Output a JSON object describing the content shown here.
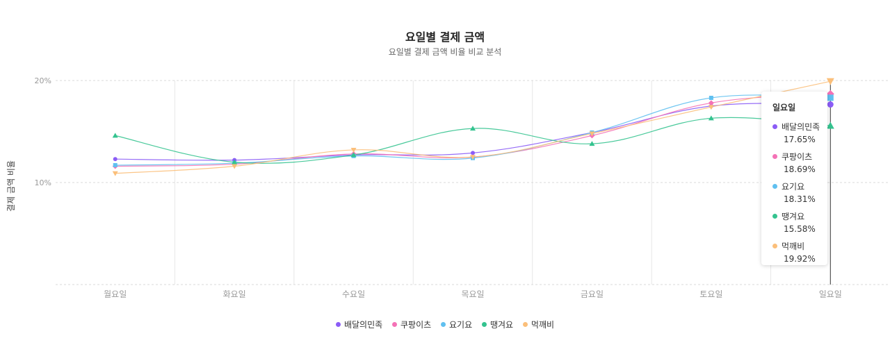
{
  "chart_data": {
    "type": "line",
    "title": "요일별 결제 금액",
    "subtitle": "요일별 결제 금액 비율 비교 분석",
    "ylabel": "결제 금액 비율",
    "xlabel": "",
    "ylim": [
      0,
      20
    ],
    "yticks": [
      "20%",
      "10%"
    ],
    "categories": [
      "월요일",
      "화요일",
      "수요일",
      "목요일",
      "금요일",
      "토요일",
      "일요일"
    ],
    "series": [
      {
        "name": "배달의민족",
        "color": "#8b5cf6",
        "marker": "circle",
        "values": [
          12.3,
          12.2,
          12.7,
          12.9,
          14.9,
          17.5,
          17.65
        ]
      },
      {
        "name": "쿠팡이츠",
        "color": "#f472b6",
        "marker": "diamond",
        "values": [
          11.6,
          11.8,
          12.8,
          12.5,
          14.6,
          17.8,
          18.69
        ]
      },
      {
        "name": "요기요",
        "color": "#60c0f0",
        "marker": "square",
        "values": [
          11.7,
          11.9,
          12.6,
          12.4,
          14.9,
          18.3,
          18.31
        ]
      },
      {
        "name": "땡겨요",
        "color": "#34c38f",
        "marker": "triangle",
        "values": [
          14.6,
          12.0,
          12.7,
          15.3,
          13.8,
          16.3,
          15.58
        ]
      },
      {
        "name": "먹깨비",
        "color": "#fbbf7a",
        "marker": "triangle-down",
        "values": [
          10.9,
          11.6,
          13.2,
          12.5,
          14.8,
          17.4,
          19.92
        ]
      }
    ],
    "grid": "dashed horizontal, solid vertical category separators",
    "legend_position": "bottom"
  },
  "tooltip": {
    "title": "일요일",
    "items": [
      {
        "name": "배달의민족",
        "value": "17.65%"
      },
      {
        "name": "쿠팡이츠",
        "value": "18.69%"
      },
      {
        "name": "요기요",
        "value": "18.31%"
      },
      {
        "name": "땡겨요",
        "value": "15.58%"
      },
      {
        "name": "먹깨비",
        "value": "19.92%"
      }
    ]
  }
}
